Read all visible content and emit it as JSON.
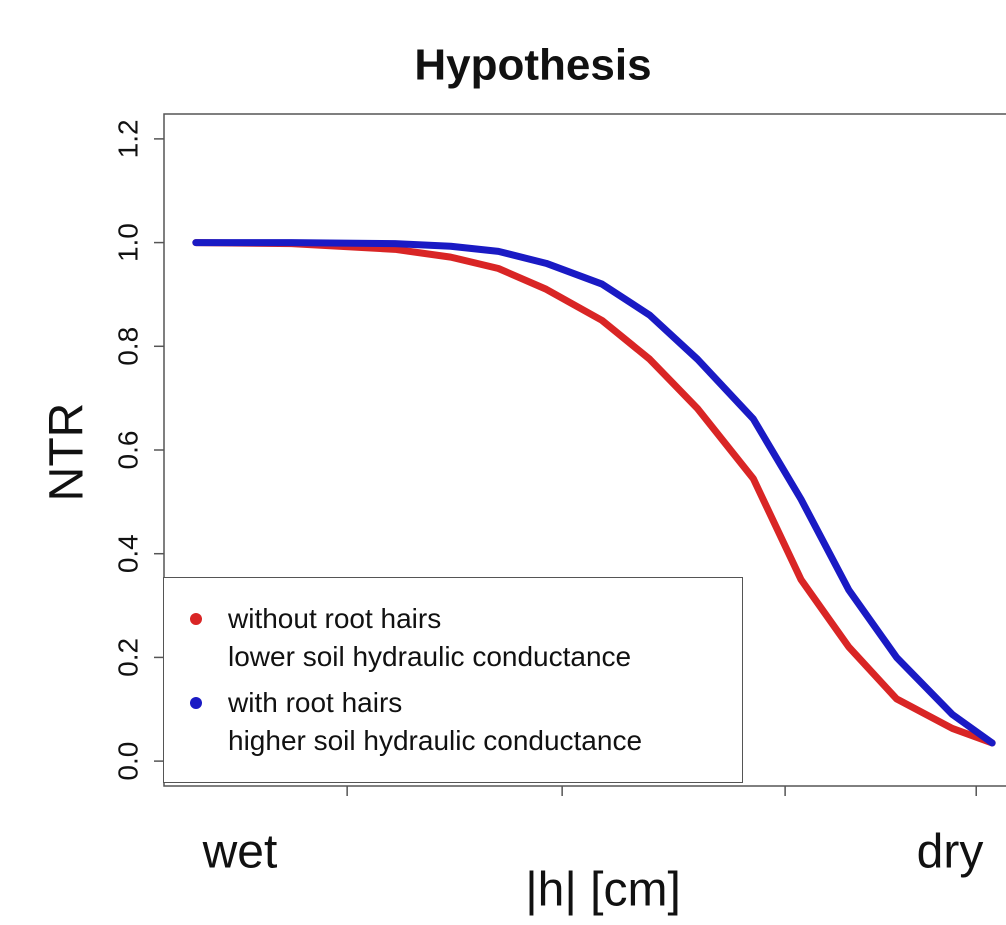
{
  "chart_data": {
    "type": "line",
    "title": "Hypothesis",
    "y_label": "NTR",
    "x_label": "|h| [cm]",
    "annotations": [
      "wet",
      "dry"
    ],
    "x": [
      0,
      12,
      25,
      32,
      38,
      44,
      51,
      57,
      63,
      70,
      76,
      82,
      88,
      95,
      100
    ],
    "series": [
      {
        "name": "without root hairs\nlower soil hydraulic conductance",
        "color": "#d92525",
        "values": [
          1.0,
          0.998,
          0.987,
          0.972,
          0.95,
          0.91,
          0.85,
          0.775,
          0.68,
          0.545,
          0.35,
          0.22,
          0.12,
          0.063,
          0.035
        ]
      },
      {
        "name": "with root hairs\nhigher soil hydraulic conductance",
        "color": "#1a1ac4",
        "values": [
          1.0,
          1.0,
          0.998,
          0.993,
          0.983,
          0.96,
          0.92,
          0.86,
          0.775,
          0.66,
          0.505,
          0.33,
          0.2,
          0.09,
          0.035
        ]
      }
    ],
    "xlim": [
      -4,
      104
    ],
    "xticks": [
      19,
      46,
      74,
      98
    ],
    "ylim": [
      -0.048,
      1.248
    ],
    "yticks": [
      {
        "value": 0,
        "label": "0.0"
      },
      {
        "value": 0.2,
        "label": "0.2"
      },
      {
        "value": 0.4,
        "label": "0.4"
      },
      {
        "value": 0.6,
        "label": "0.6"
      },
      {
        "value": 0.8,
        "label": "0.8"
      },
      {
        "value": 1,
        "label": "1.0"
      },
      {
        "value": 1.2,
        "label": "1.2"
      }
    ],
    "legend": "bottom-left"
  }
}
